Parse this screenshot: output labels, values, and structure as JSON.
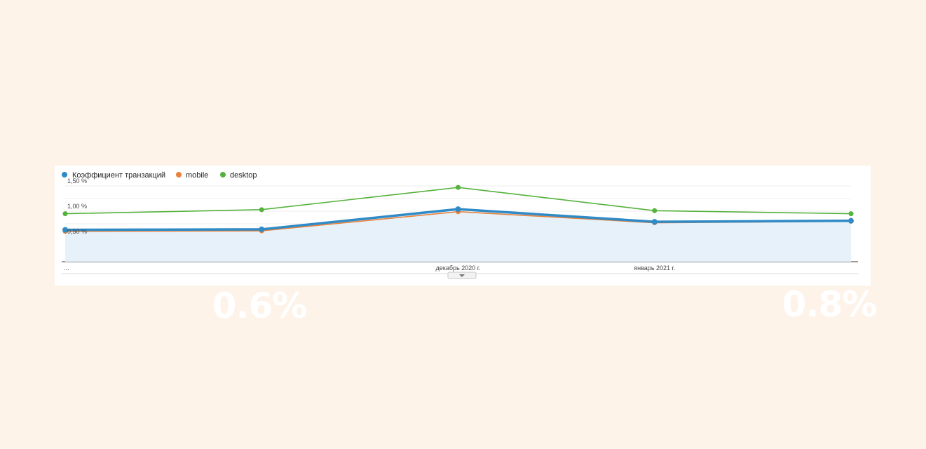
{
  "colors": {
    "background": "#fdf3e9",
    "transactions": "#2f8ac6",
    "mobile": "#e8823a",
    "desktop": "#55b23c",
    "area_fill": "#e6f1fa",
    "badge_mobile": "#ffa459",
    "badge_desktop": "#349e5a"
  },
  "badges": {
    "mobile": "0.6%",
    "desktop": "0.8%"
  },
  "chart_data": {
    "type": "line",
    "legend_position": "top-left",
    "grid": true,
    "x": [
      "…",
      "",
      "декабрь 2020 г.",
      "январь 2021 г.",
      ""
    ],
    "x_tick_labels": [
      "…",
      "декабрь 2020 г.",
      "январь 2021 г."
    ],
    "ylim": [
      0,
      1.5
    ],
    "y_ticks": [
      "1,50 %",
      "1,00 %",
      "0,50 %"
    ],
    "series": [
      {
        "name": "Коэффициент транзакций",
        "color": "#2f8ac6",
        "area": true,
        "values": [
          0.63,
          0.64,
          1.04,
          0.79,
          0.81
        ]
      },
      {
        "name": "mobile",
        "color": "#e8823a",
        "values": [
          0.6,
          0.61,
          0.99,
          0.77,
          0.8
        ]
      },
      {
        "name": "desktop",
        "color": "#55b23c",
        "values": [
          0.95,
          1.03,
          1.47,
          1.01,
          0.95
        ]
      }
    ]
  }
}
